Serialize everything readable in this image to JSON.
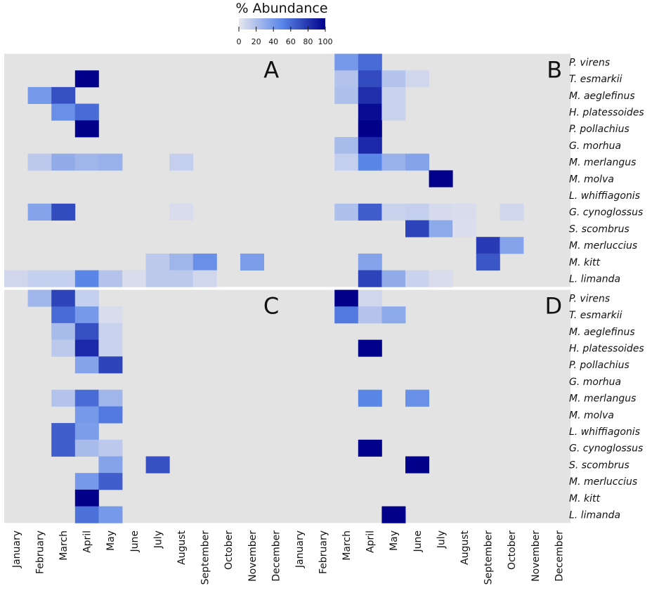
{
  "chart_data": {
    "type": "heatmap",
    "colorbar": {
      "title": "% Abundance",
      "ticks": [
        0,
        20,
        40,
        60,
        80,
        100
      ],
      "colors": [
        "#e6e6ee",
        "#5a86e8",
        "#00008b"
      ]
    },
    "background_color": "#e3e3e3",
    "months": [
      "January",
      "February",
      "March",
      "April",
      "May",
      "June",
      "July",
      "August",
      "September",
      "October",
      "November",
      "December"
    ],
    "species": [
      "P. virens",
      "T. esmarkii",
      "M. aeglefinus",
      "H. platessoides",
      "P. pollachius",
      "G. morhua",
      "M. merlangus",
      "M. molva",
      "L. whiffiagonis",
      "G. cynoglossus",
      "S. scombrus",
      "M. merluccius",
      "M. kitt",
      "L. limanda"
    ],
    "panels": [
      {
        "label": "A",
        "cells": [
          {
            "species": "T. esmarkii",
            "month": "April",
            "value": 100
          },
          {
            "species": "M. aeglefinus",
            "month": "February",
            "value": 40
          },
          {
            "species": "M. aeglefinus",
            "month": "March",
            "value": 70
          },
          {
            "species": "H. platessoides",
            "month": "March",
            "value": 45
          },
          {
            "species": "H. platessoides",
            "month": "April",
            "value": 60
          },
          {
            "species": "P. pollachius",
            "month": "April",
            "value": 100
          },
          {
            "species": "M. merlangus",
            "month": "February",
            "value": 15
          },
          {
            "species": "M. merlangus",
            "month": "March",
            "value": 30
          },
          {
            "species": "M. merlangus",
            "month": "April",
            "value": 25
          },
          {
            "species": "M. merlangus",
            "month": "May",
            "value": 28
          },
          {
            "species": "M. merlangus",
            "month": "August",
            "value": 12
          },
          {
            "species": "G. cynoglossus",
            "month": "February",
            "value": 35
          },
          {
            "species": "G. cynoglossus",
            "month": "March",
            "value": 72
          },
          {
            "species": "G. cynoglossus",
            "month": "August",
            "value": 5
          },
          {
            "species": "M. kitt",
            "month": "July",
            "value": 15
          },
          {
            "species": "M. kitt",
            "month": "August",
            "value": 25
          },
          {
            "species": "M. kitt",
            "month": "September",
            "value": 45
          },
          {
            "species": "M. kitt",
            "month": "November",
            "value": 38
          },
          {
            "species": "L. limanda",
            "month": "January",
            "value": 8
          },
          {
            "species": "L. limanda",
            "month": "February",
            "value": 12
          },
          {
            "species": "L. limanda",
            "month": "March",
            "value": 12
          },
          {
            "species": "L. limanda",
            "month": "April",
            "value": 50
          },
          {
            "species": "L. limanda",
            "month": "May",
            "value": 18
          },
          {
            "species": "L. limanda",
            "month": "June",
            "value": 5
          },
          {
            "species": "L. limanda",
            "month": "July",
            "value": 15
          },
          {
            "species": "L. limanda",
            "month": "August",
            "value": 15
          },
          {
            "species": "L. limanda",
            "month": "September",
            "value": 8
          }
        ]
      },
      {
        "label": "B",
        "cells": [
          {
            "species": "P. virens",
            "month": "March",
            "value": 40
          },
          {
            "species": "P. virens",
            "month": "April",
            "value": 60
          },
          {
            "species": "T. esmarkii",
            "month": "March",
            "value": 18
          },
          {
            "species": "T. esmarkii",
            "month": "April",
            "value": 72
          },
          {
            "species": "T. esmarkii",
            "month": "May",
            "value": 18
          },
          {
            "species": "T. esmarkii",
            "month": "June",
            "value": 8
          },
          {
            "species": "M. aeglefinus",
            "month": "March",
            "value": 20
          },
          {
            "species": "M. aeglefinus",
            "month": "April",
            "value": 82
          },
          {
            "species": "M. aeglefinus",
            "month": "May",
            "value": 10
          },
          {
            "species": "H. platessoides",
            "month": "April",
            "value": 95
          },
          {
            "species": "H. platessoides",
            "month": "May",
            "value": 10
          },
          {
            "species": "P. pollachius",
            "month": "April",
            "value": 100
          },
          {
            "species": "G. morhua",
            "month": "March",
            "value": 22
          },
          {
            "species": "G. morhua",
            "month": "April",
            "value": 85
          },
          {
            "species": "M. merlangus",
            "month": "March",
            "value": 12
          },
          {
            "species": "M. merlangus",
            "month": "April",
            "value": 50
          },
          {
            "species": "M. merlangus",
            "month": "May",
            "value": 28
          },
          {
            "species": "M. merlangus",
            "month": "June",
            "value": 35
          },
          {
            "species": "M. molva",
            "month": "July",
            "value": 100
          },
          {
            "species": "G. cynoglossus",
            "month": "March",
            "value": 20
          },
          {
            "species": "G. cynoglossus",
            "month": "April",
            "value": 65
          },
          {
            "species": "G. cynoglossus",
            "month": "May",
            "value": 10
          },
          {
            "species": "G. cynoglossus",
            "month": "June",
            "value": 12
          },
          {
            "species": "G. cynoglossus",
            "month": "July",
            "value": 6
          },
          {
            "species": "G. cynoglossus",
            "month": "August",
            "value": 5
          },
          {
            "species": "G. cynoglossus",
            "month": "October",
            "value": 8
          },
          {
            "species": "S. scombrus",
            "month": "June",
            "value": 75
          },
          {
            "species": "S. scombrus",
            "month": "July",
            "value": 32
          },
          {
            "species": "S. scombrus",
            "month": "August",
            "value": 4
          },
          {
            "species": "M. merluccius",
            "month": "September",
            "value": 78
          },
          {
            "species": "M. merluccius",
            "month": "October",
            "value": 35
          },
          {
            "species": "M. kitt",
            "month": "April",
            "value": 35
          },
          {
            "species": "M. kitt",
            "month": "September",
            "value": 68
          },
          {
            "species": "L. limanda",
            "month": "April",
            "value": 75
          },
          {
            "species": "L. limanda",
            "month": "May",
            "value": 30
          },
          {
            "species": "L. limanda",
            "month": "June",
            "value": 10
          },
          {
            "species": "L. limanda",
            "month": "July",
            "value": 5
          }
        ]
      },
      {
        "label": "C",
        "cells": [
          {
            "species": "P. virens",
            "month": "February",
            "value": 25
          },
          {
            "species": "P. virens",
            "month": "March",
            "value": 75
          },
          {
            "species": "P. virens",
            "month": "April",
            "value": 12
          },
          {
            "species": "T. esmarkii",
            "month": "March",
            "value": 60
          },
          {
            "species": "T. esmarkii",
            "month": "April",
            "value": 40
          },
          {
            "species": "T. esmarkii",
            "month": "May",
            "value": 5
          },
          {
            "species": "M. aeglefinus",
            "month": "March",
            "value": 22
          },
          {
            "species": "M. aeglefinus",
            "month": "April",
            "value": 70
          },
          {
            "species": "M. aeglefinus",
            "month": "May",
            "value": 10
          },
          {
            "species": "H. platessoides",
            "month": "March",
            "value": 15
          },
          {
            "species": "H. platessoides",
            "month": "April",
            "value": 85
          },
          {
            "species": "H. platessoides",
            "month": "May",
            "value": 10
          },
          {
            "species": "P. pollachius",
            "month": "April",
            "value": 35
          },
          {
            "species": "P. pollachius",
            "month": "May",
            "value": 75
          },
          {
            "species": "M. merlangus",
            "month": "March",
            "value": 18
          },
          {
            "species": "M. merlangus",
            "month": "April",
            "value": 60
          },
          {
            "species": "M. merlangus",
            "month": "May",
            "value": 25
          },
          {
            "species": "M. molva",
            "month": "April",
            "value": 40
          },
          {
            "species": "M. molva",
            "month": "May",
            "value": 55
          },
          {
            "species": "L. whiffiagonis",
            "month": "March",
            "value": 65
          },
          {
            "species": "L. whiffiagonis",
            "month": "April",
            "value": 38
          },
          {
            "species": "G. cynoglossus",
            "month": "March",
            "value": 65
          },
          {
            "species": "G. cynoglossus",
            "month": "April",
            "value": 22
          },
          {
            "species": "G. cynoglossus",
            "month": "May",
            "value": 15
          },
          {
            "species": "S. scombrus",
            "month": "May",
            "value": 35
          },
          {
            "species": "S. scombrus",
            "month": "July",
            "value": 70
          },
          {
            "species": "M. merluccius",
            "month": "April",
            "value": 40
          },
          {
            "species": "M. merluccius",
            "month": "May",
            "value": 65
          },
          {
            "species": "M. kitt",
            "month": "April",
            "value": 100
          },
          {
            "species": "L. limanda",
            "month": "April",
            "value": 58
          },
          {
            "species": "L. limanda",
            "month": "May",
            "value": 40
          }
        ]
      },
      {
        "label": "D",
        "cells": [
          {
            "species": "P. virens",
            "month": "March",
            "value": 100
          },
          {
            "species": "P. virens",
            "month": "April",
            "value": 8
          },
          {
            "species": "T. esmarkii",
            "month": "March",
            "value": 55
          },
          {
            "species": "T. esmarkii",
            "month": "April",
            "value": 18
          },
          {
            "species": "T. esmarkii",
            "month": "May",
            "value": 32
          },
          {
            "species": "H. platessoides",
            "month": "April",
            "value": 100
          },
          {
            "species": "M. merlangus",
            "month": "April",
            "value": 50
          },
          {
            "species": "M. merlangus",
            "month": "June",
            "value": 45
          },
          {
            "species": "G. cynoglossus",
            "month": "April",
            "value": 100
          },
          {
            "species": "S. scombrus",
            "month": "June",
            "value": 100
          },
          {
            "species": "L. limanda",
            "month": "May",
            "value": 100
          }
        ]
      }
    ]
  }
}
